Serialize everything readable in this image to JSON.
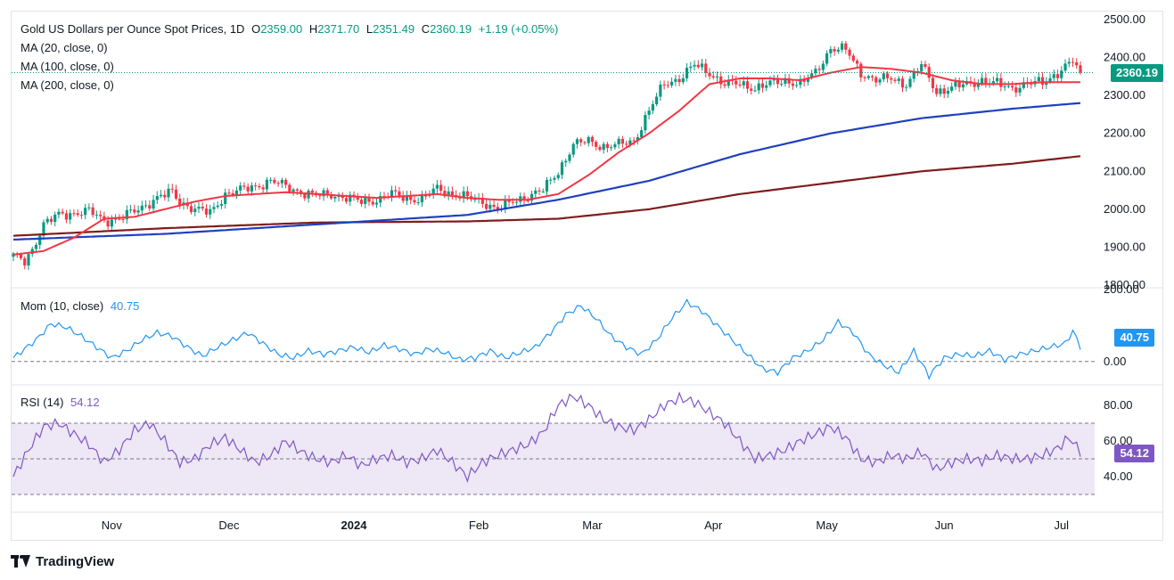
{
  "header": {
    "symbol_title": "Gold US Dollars per Ounce Spot Prices, 1D",
    "open_label": "O",
    "open": "2359.00",
    "high_label": "H",
    "high": "2371.70",
    "low_label": "L",
    "low": "2351.49",
    "close_label": "C",
    "close": "2360.19",
    "change": "+1.19 (+0.05%)"
  },
  "legend": {
    "ma20": "MA (20, close, 0)",
    "ma100": "MA (100, close, 0)",
    "ma200": "MA (200, close, 0)",
    "mom_label": "Mom (10, close)",
    "mom_value": "40.75",
    "rsi_label": "RSI (14)",
    "rsi_value": "54.12"
  },
  "price_tags": {
    "price": "2360.19",
    "mom": "40.75",
    "rsi": "54.12"
  },
  "branding": {
    "name": "TradingView"
  },
  "colors": {
    "up": "#089981",
    "down": "#f23645",
    "ma20": "#f23645",
    "ma100": "#1e40c0",
    "ma200": "#7f1d1d",
    "mom": "#2196f3",
    "rsi": "#7e57c2",
    "rsi_band": "#ede7f6"
  },
  "chart_data": [
    {
      "type": "candlestick",
      "title": "Gold US Dollars per Ounce Spot Prices, 1D",
      "ylim": [
        1800,
        2500
      ],
      "y_ticks": [
        "2500.00",
        "2400.00",
        "2300.00",
        "2200.00",
        "2100.00",
        "2000.00",
        "1900.00",
        "1800.00"
      ],
      "x_ticks": [
        "Nov",
        "Dec",
        "2024",
        "Feb",
        "Mar",
        "Apr",
        "May",
        "Jun",
        "Jul"
      ],
      "close_anchors": [
        [
          0,
          1875
        ],
        [
          3,
          1862
        ],
        [
          5,
          1895
        ],
        [
          8,
          1960
        ],
        [
          12,
          1985
        ],
        [
          16,
          1990
        ],
        [
          20,
          1995
        ],
        [
          24,
          1970
        ],
        [
          28,
          1975
        ],
        [
          33,
          2000
        ],
        [
          38,
          2030
        ],
        [
          42,
          2045
        ],
        [
          44,
          2020
        ],
        [
          48,
          2000
        ],
        [
          52,
          1990
        ],
        [
          56,
          2040
        ],
        [
          60,
          2050
        ],
        [
          64,
          2060
        ],
        [
          68,
          2075
        ],
        [
          72,
          2060
        ],
        [
          76,
          2045
        ],
        [
          80,
          2035
        ],
        [
          84,
          2040
        ],
        [
          88,
          2030
        ],
        [
          92,
          2020
        ],
        [
          96,
          2025
        ],
        [
          100,
          2040
        ],
        [
          104,
          2030
        ],
        [
          108,
          2025
        ],
        [
          112,
          2055
        ],
        [
          116,
          2040
        ],
        [
          120,
          2030
        ],
        [
          124,
          2020
        ],
        [
          128,
          2000
        ],
        [
          132,
          2020
        ],
        [
          136,
          2035
        ],
        [
          140,
          2050
        ],
        [
          144,
          2100
        ],
        [
          148,
          2170
        ],
        [
          152,
          2180
        ],
        [
          156,
          2165
        ],
        [
          160,
          2170
        ],
        [
          164,
          2180
        ],
        [
          168,
          2260
        ],
        [
          172,
          2330
        ],
        [
          176,
          2345
        ],
        [
          180,
          2380
        ],
        [
          184,
          2360
        ],
        [
          188,
          2330
        ],
        [
          192,
          2330
        ],
        [
          196,
          2320
        ],
        [
          200,
          2330
        ],
        [
          204,
          2340
        ],
        [
          208,
          2330
        ],
        [
          212,
          2360
        ],
        [
          216,
          2425
        ],
        [
          220,
          2420
        ],
        [
          224,
          2360
        ],
        [
          228,
          2340
        ],
        [
          232,
          2345
        ],
        [
          236,
          2330
        ],
        [
          240,
          2380
        ],
        [
          244,
          2310
        ],
        [
          248,
          2320
        ],
        [
          252,
          2330
        ],
        [
          256,
          2340
        ],
        [
          260,
          2330
        ],
        [
          264,
          2320
        ],
        [
          268,
          2330
        ],
        [
          272,
          2335
        ],
        [
          276,
          2360
        ],
        [
          280,
          2390
        ],
        [
          282,
          2360
        ]
      ],
      "ma20_anchors": [
        [
          0,
          1880
        ],
        [
          8,
          1890
        ],
        [
          16,
          1925
        ],
        [
          24,
          1975
        ],
        [
          32,
          1980
        ],
        [
          40,
          2000
        ],
        [
          48,
          2020
        ],
        [
          56,
          2035
        ],
        [
          64,
          2040
        ],
        [
          72,
          2045
        ],
        [
          80,
          2040
        ],
        [
          88,
          2035
        ],
        [
          96,
          2030
        ],
        [
          104,
          2035
        ],
        [
          112,
          2040
        ],
        [
          120,
          2030
        ],
        [
          128,
          2025
        ],
        [
          136,
          2025
        ],
        [
          144,
          2040
        ],
        [
          152,
          2090
        ],
        [
          160,
          2150
        ],
        [
          168,
          2200
        ],
        [
          176,
          2260
        ],
        [
          184,
          2330
        ],
        [
          192,
          2345
        ],
        [
          200,
          2345
        ],
        [
          208,
          2340
        ],
        [
          216,
          2360
        ],
        [
          224,
          2375
        ],
        [
          232,
          2370
        ],
        [
          240,
          2360
        ],
        [
          248,
          2340
        ],
        [
          256,
          2330
        ],
        [
          264,
          2330
        ],
        [
          272,
          2335
        ],
        [
          282,
          2335
        ]
      ],
      "ma100_anchors": [
        [
          0,
          1920
        ],
        [
          40,
          1935
        ],
        [
          80,
          1960
        ],
        [
          120,
          1985
        ],
        [
          144,
          2025
        ],
        [
          168,
          2075
        ],
        [
          192,
          2145
        ],
        [
          216,
          2200
        ],
        [
          240,
          2240
        ],
        [
          264,
          2265
        ],
        [
          282,
          2280
        ]
      ],
      "ma200_anchors": [
        [
          0,
          1930
        ],
        [
          40,
          1950
        ],
        [
          80,
          1965
        ],
        [
          120,
          1968
        ],
        [
          144,
          1975
        ],
        [
          168,
          2000
        ],
        [
          192,
          2040
        ],
        [
          216,
          2070
        ],
        [
          240,
          2100
        ],
        [
          264,
          2120
        ],
        [
          282,
          2140
        ]
      ],
      "last_close": 2360.19
    },
    {
      "type": "line",
      "title": "Mom (10, close)",
      "ylim": [
        -60,
        200
      ],
      "y_ticks": [
        "200.00",
        "0.00"
      ],
      "anchors": [
        [
          0,
          10
        ],
        [
          6,
          60
        ],
        [
          10,
          105
        ],
        [
          14,
          95
        ],
        [
          18,
          70
        ],
        [
          22,
          40
        ],
        [
          26,
          10
        ],
        [
          30,
          30
        ],
        [
          34,
          60
        ],
        [
          38,
          80
        ],
        [
          42,
          70
        ],
        [
          46,
          40
        ],
        [
          50,
          15
        ],
        [
          54,
          40
        ],
        [
          58,
          60
        ],
        [
          62,
          80
        ],
        [
          66,
          50
        ],
        [
          70,
          20
        ],
        [
          74,
          10
        ],
        [
          78,
          30
        ],
        [
          82,
          20
        ],
        [
          86,
          30
        ],
        [
          90,
          40
        ],
        [
          94,
          25
        ],
        [
          98,
          45
        ],
        [
          102,
          35
        ],
        [
          106,
          20
        ],
        [
          110,
          35
        ],
        [
          114,
          25
        ],
        [
          118,
          5
        ],
        [
          122,
          10
        ],
        [
          126,
          30
        ],
        [
          130,
          10
        ],
        [
          134,
          25
        ],
        [
          138,
          40
        ],
        [
          142,
          80
        ],
        [
          146,
          130
        ],
        [
          150,
          155
        ],
        [
          154,
          120
        ],
        [
          158,
          70
        ],
        [
          162,
          40
        ],
        [
          166,
          20
        ],
        [
          170,
          60
        ],
        [
          174,
          120
        ],
        [
          178,
          165
        ],
        [
          182,
          140
        ],
        [
          186,
          100
        ],
        [
          190,
          60
        ],
        [
          194,
          20
        ],
        [
          198,
          -20
        ],
        [
          202,
          -30
        ],
        [
          206,
          10
        ],
        [
          210,
          30
        ],
        [
          214,
          60
        ],
        [
          218,
          110
        ],
        [
          222,
          80
        ],
        [
          226,
          20
        ],
        [
          230,
          -10
        ],
        [
          234,
          -30
        ],
        [
          238,
          30
        ],
        [
          242,
          -40
        ],
        [
          246,
          10
        ],
        [
          250,
          20
        ],
        [
          254,
          15
        ],
        [
          258,
          30
        ],
        [
          262,
          5
        ],
        [
          266,
          20
        ],
        [
          270,
          30
        ],
        [
          274,
          40
        ],
        [
          278,
          50
        ],
        [
          280,
          85
        ],
        [
          282,
          40.75
        ]
      ],
      "last_value": 40.75
    },
    {
      "type": "line",
      "title": "RSI (14)",
      "ylim": [
        25,
        90
      ],
      "y_ticks": [
        "80.00",
        "60.00",
        "40.00"
      ],
      "bands": [
        70,
        50,
        30
      ],
      "anchors": [
        [
          0,
          40
        ],
        [
          4,
          55
        ],
        [
          8,
          68
        ],
        [
          12,
          70
        ],
        [
          16,
          64
        ],
        [
          20,
          58
        ],
        [
          24,
          48
        ],
        [
          28,
          55
        ],
        [
          32,
          66
        ],
        [
          36,
          70
        ],
        [
          40,
          60
        ],
        [
          44,
          48
        ],
        [
          48,
          50
        ],
        [
          52,
          58
        ],
        [
          56,
          62
        ],
        [
          60,
          55
        ],
        [
          64,
          48
        ],
        [
          68,
          52
        ],
        [
          72,
          60
        ],
        [
          76,
          54
        ],
        [
          80,
          50
        ],
        [
          84,
          48
        ],
        [
          88,
          52
        ],
        [
          92,
          46
        ],
        [
          96,
          50
        ],
        [
          100,
          52
        ],
        [
          104,
          48
        ],
        [
          108,
          50
        ],
        [
          112,
          55
        ],
        [
          116,
          48
        ],
        [
          120,
          40
        ],
        [
          124,
          48
        ],
        [
          128,
          52
        ],
        [
          132,
          55
        ],
        [
          136,
          58
        ],
        [
          140,
          65
        ],
        [
          144,
          80
        ],
        [
          148,
          85
        ],
        [
          152,
          80
        ],
        [
          156,
          72
        ],
        [
          160,
          68
        ],
        [
          164,
          66
        ],
        [
          168,
          72
        ],
        [
          172,
          80
        ],
        [
          176,
          84
        ],
        [
          180,
          82
        ],
        [
          184,
          76
        ],
        [
          188,
          70
        ],
        [
          192,
          60
        ],
        [
          196,
          50
        ],
        [
          200,
          52
        ],
        [
          204,
          55
        ],
        [
          208,
          60
        ],
        [
          212,
          64
        ],
        [
          216,
          68
        ],
        [
          220,
          62
        ],
        [
          224,
          50
        ],
        [
          228,
          48
        ],
        [
          232,
          52
        ],
        [
          236,
          50
        ],
        [
          240,
          54
        ],
        [
          244,
          44
        ],
        [
          248,
          48
        ],
        [
          252,
          50
        ],
        [
          256,
          49
        ],
        [
          260,
          52
        ],
        [
          264,
          50
        ],
        [
          268,
          50
        ],
        [
          272,
          52
        ],
        [
          276,
          56
        ],
        [
          279,
          62
        ],
        [
          282,
          54.12
        ]
      ],
      "last_value": 54.12
    }
  ]
}
